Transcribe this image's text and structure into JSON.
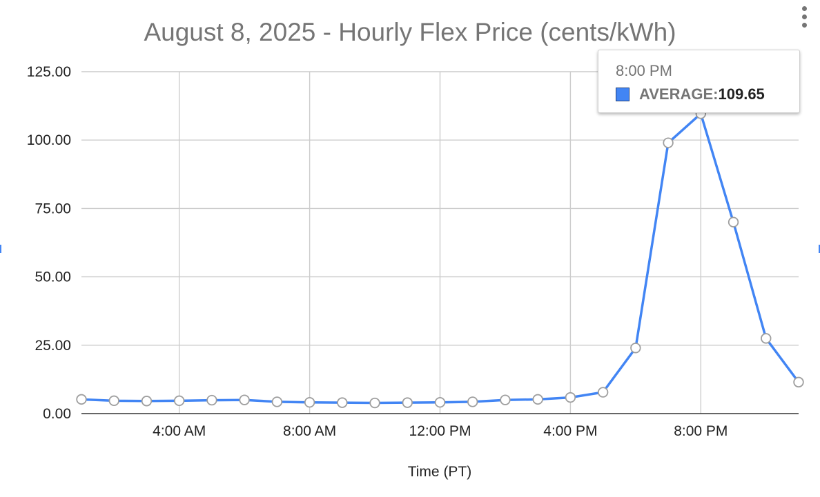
{
  "chart_data": {
    "type": "line",
    "title": "August 8, 2025 - Hourly Flex Price (cents/kWh)",
    "xlabel": "Time (PT)",
    "ylabel": "",
    "x": [
      1,
      2,
      3,
      4,
      5,
      6,
      7,
      8,
      9,
      10,
      11,
      12,
      13,
      14,
      15,
      16,
      17,
      18,
      19,
      20,
      21,
      22,
      23
    ],
    "xlim": [
      1,
      23
    ],
    "x_ticks": [
      {
        "x": 4,
        "label": "4:00 AM"
      },
      {
        "x": 8,
        "label": "8:00 AM"
      },
      {
        "x": 12,
        "label": "12:00 PM"
      },
      {
        "x": 16,
        "label": "4:00 PM"
      },
      {
        "x": 20,
        "label": "8:00 PM"
      }
    ],
    "ylim": [
      0,
      125
    ],
    "y_ticks": [
      {
        "y": 0,
        "label": "0.00"
      },
      {
        "y": 25,
        "label": "25.00"
      },
      {
        "y": 50,
        "label": "50.00"
      },
      {
        "y": 75,
        "label": "75.00"
      },
      {
        "y": 100,
        "label": "100.00"
      },
      {
        "y": 125,
        "label": "125.00"
      }
    ],
    "grid": true,
    "series": [
      {
        "name": "AVERAGE",
        "color": "#4285f4",
        "values": [
          5.2,
          4.7,
          4.6,
          4.7,
          4.9,
          5.0,
          4.3,
          4.1,
          4.0,
          3.9,
          4.0,
          4.1,
          4.3,
          5.0,
          5.2,
          5.9,
          7.8,
          24.0,
          99.0,
          109.65,
          70.0,
          27.5,
          11.5
        ]
      }
    ],
    "tooltip": {
      "time": "8:00 PM",
      "series": "AVERAGE",
      "value": "109.65"
    }
  },
  "menu": {
    "icon": "more-vert-icon"
  }
}
